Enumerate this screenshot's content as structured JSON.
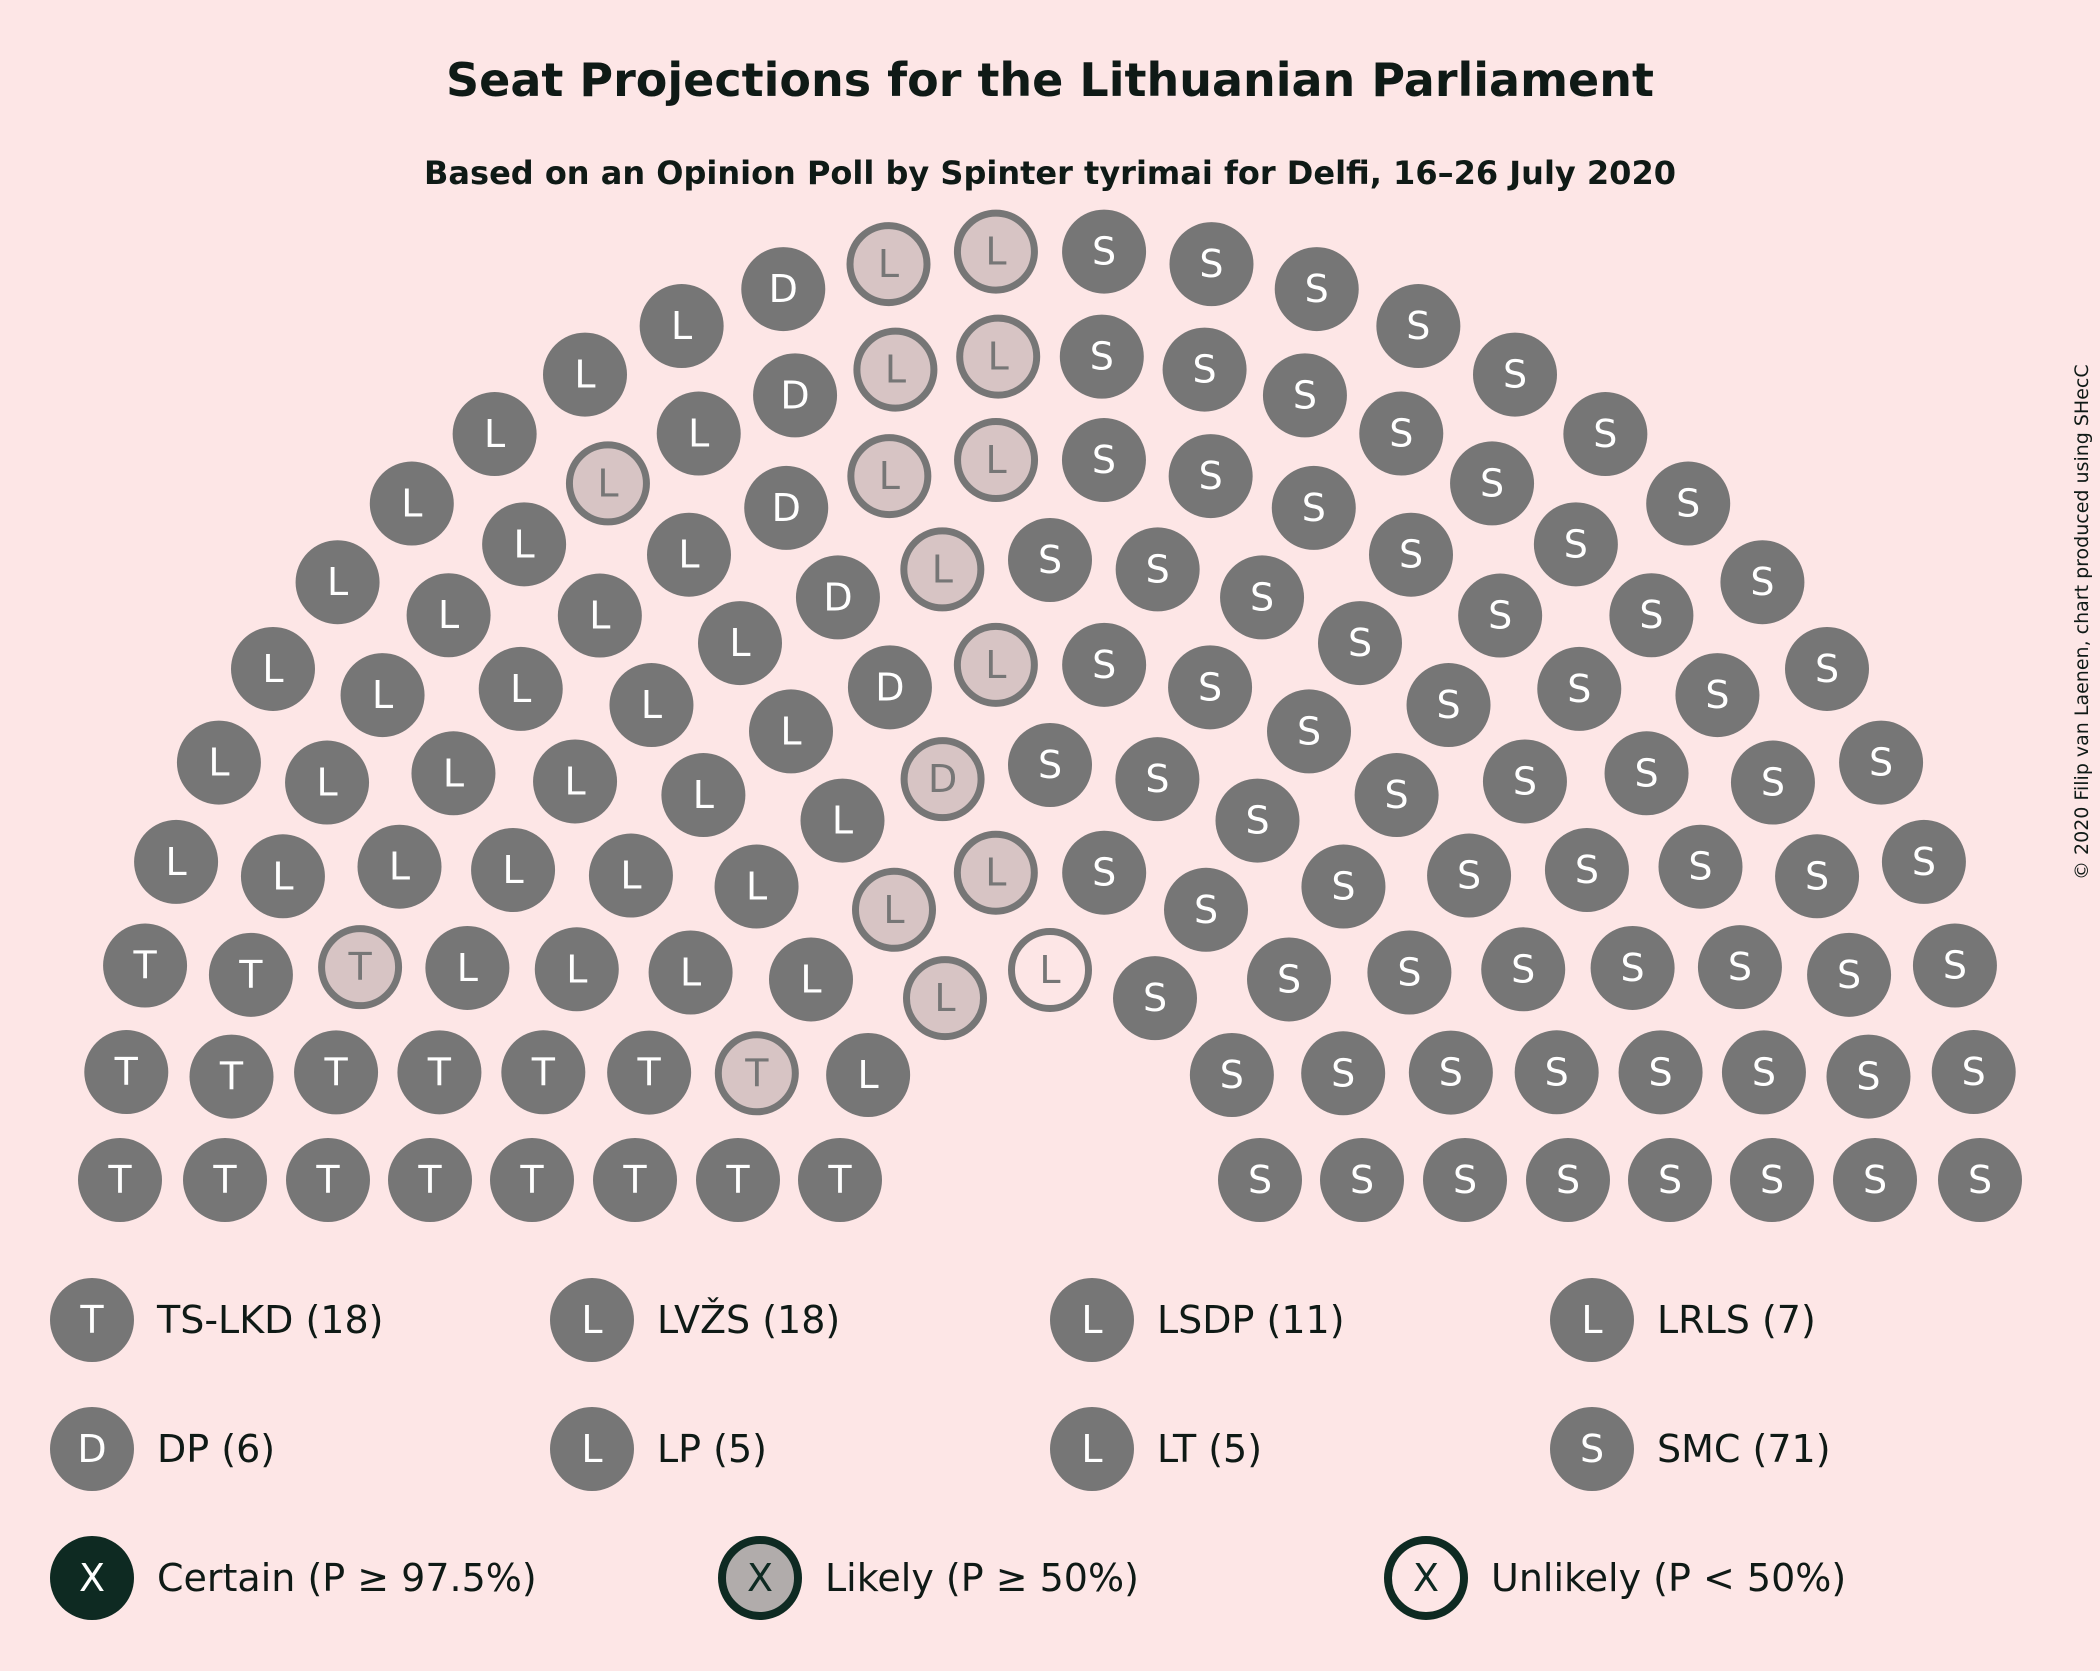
{
  "chart_data": {
    "type": "parliament",
    "title": "Seat Projections for the Lithuanian Parliament",
    "subtitle": "Based on an Opinion Poll by Spinter tyrimai for Delfi, 16–26 July 2020",
    "credit": "© 2020 Filip van Laenen, chart produced using SHecC",
    "total_seats": 141,
    "parties": [
      {
        "name": "TS-LKD",
        "letter": "T",
        "seats": 18,
        "likely": 2,
        "unlikely": 0
      },
      {
        "name": "LVŽS",
        "letter": "L",
        "seats": 18,
        "likely": 0,
        "unlikely": 0
      },
      {
        "name": "LSDP",
        "letter": "L",
        "seats": 11,
        "likely": 3,
        "unlikely": 0
      },
      {
        "name": "LRLS",
        "letter": "L",
        "seats": 7,
        "likely": 0,
        "unlikely": 0
      },
      {
        "name": "DP",
        "letter": "D",
        "seats": 6,
        "likely": 1,
        "unlikely": 0
      },
      {
        "name": "LP",
        "letter": "L",
        "seats": 5,
        "likely": 5,
        "unlikely": 0
      },
      {
        "name": "LT",
        "letter": "L",
        "seats": 5,
        "likely": 4,
        "unlikely": 1
      },
      {
        "name": "SMC",
        "letter": "S",
        "seats": 71,
        "likely": 0,
        "unlikely": 0
      }
    ],
    "legend": {
      "parties": [
        {
          "letter": "T",
          "label": "TS-LKD (18)"
        },
        {
          "letter": "L",
          "label": "LVŽS (18)"
        },
        {
          "letter": "L",
          "label": "LSDP (11)"
        },
        {
          "letter": "L",
          "label": "LRLS (7)"
        },
        {
          "letter": "D",
          "label": "DP (6)"
        },
        {
          "letter": "L",
          "label": "LP (5)"
        },
        {
          "letter": "L",
          "label": "LT (5)"
        },
        {
          "letter": "S",
          "label": "SMC (71)"
        }
      ],
      "certainty": [
        {
          "symbol": "X",
          "label": "Certain (P ≥ 97.5%)"
        },
        {
          "symbol": "X",
          "label": "Likely (P ≥ 50%)"
        },
        {
          "symbol": "X",
          "label": "Unlikely (P < 50%)"
        }
      ]
    },
    "colors": {
      "background": "#fde6e6",
      "certain": "#767676",
      "likely_fill": "#d7c4c4",
      "unlikely_fill": "#fde6e6",
      "legend_certain": "#0e2a22",
      "legend_likely": "#b1acab",
      "text": "#0f1a16"
    }
  }
}
